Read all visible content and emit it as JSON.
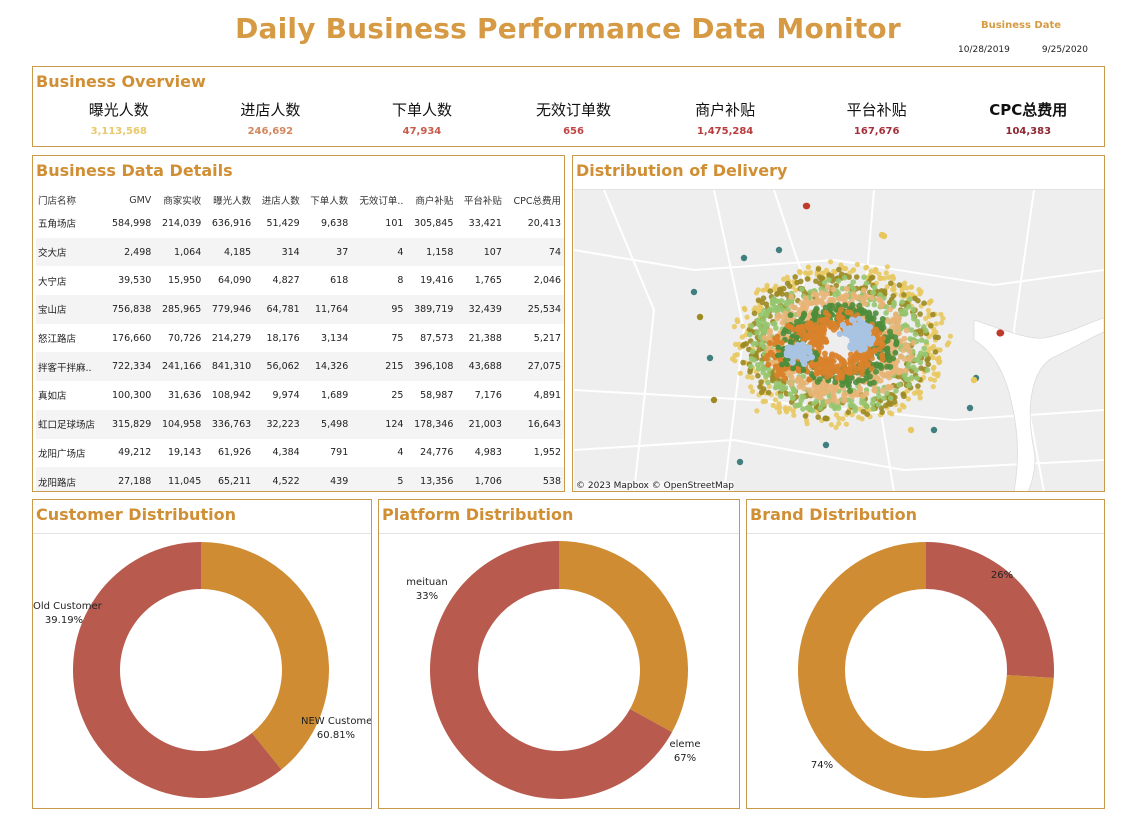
{
  "header": {
    "title": "Daily Business Performance Data Monitor",
    "business_date_label": "Business Date",
    "date_start": "10/28/2019",
    "date_end": "9/25/2020"
  },
  "overview": {
    "title": "Business Overview",
    "kpis": [
      {
        "label": "曝光人数",
        "value": "3,113,568",
        "color": "#e9c86a"
      },
      {
        "label": "进店人数",
        "value": "246,692",
        "color": "#d4875c"
      },
      {
        "label": "下单人数",
        "value": "47,934",
        "color": "#c85a4a"
      },
      {
        "label": "无效订单数",
        "value": "656",
        "color": "#c14545"
      },
      {
        "label": "商户补贴",
        "value": "1,475,284",
        "color": "#b83b3d"
      },
      {
        "label": "平台补贴",
        "value": "167,676",
        "color": "#a52f3a"
      },
      {
        "label": "CPC总费用",
        "value": "104,383",
        "color": "#8f2631"
      }
    ]
  },
  "details": {
    "title": "Business Data Details",
    "columns": [
      "门店名称",
      "GMV",
      "商家实收",
      "曝光人数",
      "进店人数",
      "下单人数",
      "无效订单..",
      "商户补贴",
      "平台补贴",
      "CPC总费用"
    ],
    "rows": [
      [
        "五角场店",
        "584,998",
        "214,039",
        "636,916",
        "51,429",
        "9,638",
        "101",
        "305,845",
        "33,421",
        "20,413"
      ],
      [
        "交大店",
        "2,498",
        "1,064",
        "4,185",
        "314",
        "37",
        "4",
        "1,158",
        "107",
        "74"
      ],
      [
        "大宁店",
        "39,530",
        "15,950",
        "64,090",
        "4,827",
        "618",
        "8",
        "19,416",
        "1,765",
        "2,046"
      ],
      [
        "宝山店",
        "756,838",
        "285,965",
        "779,946",
        "64,781",
        "11,764",
        "95",
        "389,719",
        "32,439",
        "25,534"
      ],
      [
        "怒江路店",
        "176,660",
        "70,726",
        "214,279",
        "18,176",
        "3,134",
        "75",
        "87,573",
        "21,388",
        "5,217"
      ],
      [
        "拌客干拌麻..",
        "722,334",
        "241,166",
        "841,310",
        "56,062",
        "14,326",
        "215",
        "396,108",
        "43,688",
        "27,075"
      ],
      [
        "真如店",
        "100,300",
        "31,636",
        "108,942",
        "9,974",
        "1,689",
        "25",
        "58,987",
        "7,176",
        "4,891"
      ],
      [
        "虹口足球场店",
        "315,829",
        "104,958",
        "336,763",
        "32,223",
        "5,498",
        "124",
        "178,346",
        "21,003",
        "16,643"
      ],
      [
        "龙阳广场店",
        "49,212",
        "19,143",
        "61,926",
        "4,384",
        "791",
        "4",
        "24,776",
        "4,983",
        "1,952"
      ],
      [
        "龙阳路店",
        "27,188",
        "11,045",
        "65,211",
        "4,522",
        "439",
        "5",
        "13,356",
        "1,706",
        "538"
      ]
    ]
  },
  "delivery": {
    "title": "Distribution of Delivery",
    "attribution": "© 2023 Mapbox  © OpenStreetMap",
    "palette": [
      "#a9c4e3",
      "#d9822b",
      "#e8b476",
      "#4e8d3a",
      "#96c56e",
      "#9c8a22",
      "#e8c85e",
      "#3f7f7f",
      "#c0392b"
    ]
  },
  "chart_data": [
    {
      "type": "pie",
      "title": "Customer Distribution",
      "slices": [
        {
          "label": "Old Customer",
          "pct_label": "39.19%",
          "value": 39.19,
          "color": "#cf8c33"
        },
        {
          "label": "NEW Customer",
          "pct_label": "60.81%",
          "value": 60.81,
          "color": "#b85a4d"
        }
      ]
    },
    {
      "type": "pie",
      "title": "Platform Distribution",
      "slices": [
        {
          "label": "meituan",
          "pct_label": "33%",
          "value": 33,
          "color": "#cf8c33"
        },
        {
          "label": "eleme",
          "pct_label": "67%",
          "value": 67,
          "color": "#b85a4d"
        }
      ]
    },
    {
      "type": "pie",
      "title": "Brand Distribution",
      "slices": [
        {
          "label": "",
          "pct_label": "26%",
          "value": 26,
          "color": "#b85a4d"
        },
        {
          "label": "",
          "pct_label": "74%",
          "value": 74,
          "color": "#cf8c33"
        }
      ]
    }
  ]
}
